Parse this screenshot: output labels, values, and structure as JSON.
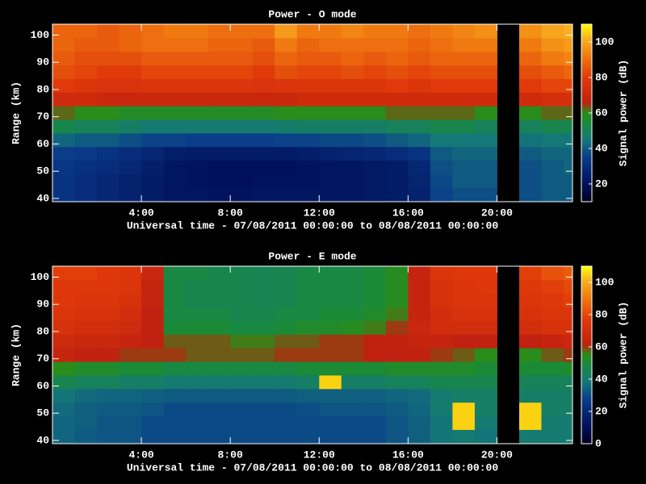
{
  "chart_data": [
    {
      "type": "heatmap",
      "title": "Power - O mode",
      "xlabel": "Universal time - 07/08/2011 00:00:00 to 08/08/2011 00:00:00",
      "ylabel": "Range (km)",
      "colorbar_label": "Signal power (dB)",
      "x_bins": [
        0,
        1,
        2,
        3,
        4,
        5,
        6,
        7,
        8,
        9,
        10,
        11,
        12,
        13,
        14,
        15,
        16,
        17,
        18,
        19,
        20,
        21,
        22,
        23,
        24
      ],
      "y_bins": [
        39,
        44,
        49,
        54,
        59,
        64,
        69,
        74,
        79,
        84,
        89,
        94,
        99,
        104
      ],
      "xlim": [
        0,
        23.4
      ],
      "ylim": [
        38.8,
        104
      ],
      "xticks": [
        {
          "value": 4,
          "label": "4:00"
        },
        {
          "value": 8,
          "label": "8:00"
        },
        {
          "value": 12,
          "label": "12:00"
        },
        {
          "value": 16,
          "label": "16:00"
        },
        {
          "value": 20,
          "label": "20:00"
        }
      ],
      "yticks": [
        40,
        50,
        60,
        70,
        80,
        90,
        100
      ],
      "clim": [
        10,
        110
      ],
      "cticks": [
        20,
        40,
        60,
        80,
        100
      ],
      "colormap": [
        [
          0,
          "#000020"
        ],
        [
          0.1,
          "#00105a"
        ],
        [
          0.25,
          "#0a3c8a"
        ],
        [
          0.35,
          "#147878"
        ],
        [
          0.45,
          "#1a8a3a"
        ],
        [
          0.5,
          "#2a8c1a"
        ],
        [
          0.56,
          "#c02010"
        ],
        [
          0.7,
          "#e03a0a"
        ],
        [
          0.82,
          "#f07a10"
        ],
        [
          0.92,
          "#f8b020"
        ],
        [
          1,
          "#ffff00"
        ]
      ],
      "values": [
        [
          32,
          30,
          28,
          26,
          24,
          22,
          22,
          21,
          21,
          22,
          22,
          22,
          22,
          22,
          23,
          24,
          26,
          36,
          38,
          38,
          null,
          38,
          40,
          40
        ],
        [
          32,
          30,
          28,
          26,
          24,
          22,
          21,
          20,
          20,
          21,
          21,
          21,
          22,
          22,
          23,
          24,
          27,
          37,
          40,
          40,
          null,
          38,
          40,
          40
        ],
        [
          33,
          31,
          30,
          28,
          25,
          22,
          21,
          20,
          20,
          20,
          20,
          21,
          22,
          22,
          23,
          24,
          28,
          38,
          40,
          40,
          null,
          38,
          40,
          42
        ],
        [
          35,
          34,
          32,
          30,
          28,
          25,
          24,
          24,
          24,
          24,
          24,
          25,
          26,
          27,
          28,
          30,
          32,
          40,
          42,
          42,
          null,
          40,
          42,
          42
        ],
        [
          42,
          40,
          40,
          38,
          36,
          36,
          35,
          35,
          35,
          35,
          36,
          36,
          37,
          37,
          38,
          40,
          42,
          45,
          45,
          45,
          null,
          44,
          45,
          45
        ],
        [
          52,
          50,
          50,
          48,
          46,
          46,
          46,
          46,
          46,
          46,
          47,
          48,
          48,
          48,
          48,
          50,
          50,
          52,
          52,
          50,
          null,
          50,
          52,
          52
        ],
        [
          62,
          60,
          60,
          58,
          58,
          58,
          58,
          58,
          58,
          58,
          60,
          60,
          60,
          60,
          60,
          62,
          62,
          62,
          62,
          60,
          null,
          60,
          62,
          62
        ],
        [
          72,
          72,
          70,
          70,
          70,
          70,
          70,
          70,
          70,
          70,
          70,
          72,
          72,
          72,
          72,
          72,
          72,
          72,
          72,
          72,
          null,
          72,
          74,
          74
        ],
        [
          80,
          78,
          76,
          76,
          78,
          78,
          78,
          78,
          78,
          76,
          78,
          78,
          78,
          78,
          78,
          80,
          78,
          80,
          80,
          80,
          null,
          80,
          82,
          82
        ],
        [
          84,
          82,
          80,
          80,
          82,
          82,
          82,
          82,
          82,
          80,
          84,
          82,
          82,
          84,
          82,
          84,
          82,
          84,
          84,
          84,
          null,
          84,
          86,
          88
        ],
        [
          86,
          84,
          84,
          84,
          86,
          86,
          86,
          86,
          86,
          84,
          88,
          86,
          86,
          88,
          86,
          88,
          86,
          88,
          88,
          88,
          null,
          88,
          92,
          94
        ],
        [
          88,
          86,
          86,
          88,
          90,
          90,
          90,
          88,
          88,
          86,
          92,
          88,
          90,
          90,
          90,
          90,
          88,
          90,
          92,
          92,
          null,
          92,
          96,
          98
        ],
        [
          88,
          88,
          86,
          88,
          90,
          92,
          92,
          90,
          90,
          90,
          98,
          92,
          92,
          94,
          92,
          92,
          90,
          92,
          94,
          96,
          null,
          96,
          100,
          102
        ]
      ]
    },
    {
      "type": "heatmap",
      "title": "Power - E mode",
      "xlabel": "Universal time - 07/08/2011 00:00:00 to 08/08/2011 00:00:00",
      "ylabel": "Range (km)",
      "colorbar_label": "Signal power (dB)",
      "x_bins": [
        0,
        1,
        2,
        3,
        4,
        5,
        6,
        7,
        8,
        9,
        10,
        11,
        12,
        13,
        14,
        15,
        16,
        17,
        18,
        19,
        20,
        21,
        22,
        23,
        24
      ],
      "y_bins": [
        39,
        44,
        49,
        54,
        59,
        64,
        69,
        74,
        79,
        84,
        89,
        94,
        99,
        104
      ],
      "xlim": [
        0,
        23.4
      ],
      "ylim": [
        38.8,
        104
      ],
      "xticks": [
        {
          "value": 4,
          "label": "4:00"
        },
        {
          "value": 8,
          "label": "8:00"
        },
        {
          "value": 12,
          "label": "12:00"
        },
        {
          "value": 16,
          "label": "16:00"
        },
        {
          "value": 20,
          "label": "20:00"
        }
      ],
      "yticks": [
        40,
        50,
        60,
        70,
        80,
        90,
        100
      ],
      "clim": [
        0,
        110
      ],
      "cticks": [
        0,
        20,
        40,
        60,
        80,
        100
      ],
      "colormap": [
        [
          0,
          "#000020"
        ],
        [
          0.1,
          "#00105a"
        ],
        [
          0.25,
          "#0a3c8a"
        ],
        [
          0.35,
          "#147878"
        ],
        [
          0.45,
          "#1a8a3a"
        ],
        [
          0.5,
          "#2a8c1a"
        ],
        [
          0.56,
          "#c02010"
        ],
        [
          0.7,
          "#e03a0a"
        ],
        [
          0.82,
          "#f07a10"
        ],
        [
          0.92,
          "#f8b020"
        ],
        [
          1,
          "#ffff00"
        ]
      ],
      "values": [
        [
          35,
          33,
          32,
          32,
          30,
          30,
          30,
          30,
          30,
          30,
          30,
          30,
          30,
          30,
          30,
          32,
          34,
          38,
          40,
          38,
          null,
          40,
          40,
          40
        ],
        [
          35,
          34,
          32,
          32,
          30,
          30,
          30,
          30,
          30,
          30,
          30,
          30,
          30,
          30,
          30,
          32,
          34,
          38,
          105,
          40,
          null,
          105,
          40,
          40
        ],
        [
          36,
          34,
          33,
          33,
          32,
          30,
          30,
          30,
          30,
          30,
          30,
          31,
          32,
          32,
          32,
          33,
          35,
          40,
          105,
          42,
          null,
          105,
          42,
          42
        ],
        [
          38,
          36,
          35,
          35,
          34,
          33,
          33,
          33,
          33,
          33,
          33,
          34,
          34,
          34,
          34,
          35,
          36,
          40,
          42,
          42,
          null,
          42,
          42,
          42
        ],
        [
          46,
          44,
          44,
          42,
          42,
          40,
          40,
          40,
          40,
          40,
          40,
          42,
          105,
          42,
          42,
          44,
          44,
          46,
          46,
          46,
          null,
          44,
          44,
          44
        ],
        [
          55,
          52,
          52,
          50,
          50,
          48,
          48,
          48,
          48,
          48,
          48,
          50,
          50,
          50,
          50,
          52,
          52,
          52,
          52,
          50,
          null,
          50,
          50,
          52
        ],
        [
          64,
          62,
          62,
          60,
          60,
          60,
          58,
          58,
          58,
          58,
          60,
          60,
          60,
          60,
          62,
          62,
          62,
          60,
          58,
          55,
          null,
          55,
          58,
          60
        ],
        [
          68,
          66,
          66,
          64,
          62,
          58,
          58,
          58,
          56,
          56,
          58,
          58,
          60,
          60,
          62,
          62,
          64,
          64,
          62,
          62,
          null,
          62,
          64,
          66
        ],
        [
          72,
          70,
          70,
          68,
          62,
          50,
          50,
          50,
          48,
          48,
          50,
          52,
          52,
          54,
          56,
          60,
          66,
          70,
          70,
          70,
          null,
          70,
          72,
          72
        ],
        [
          74,
          72,
          72,
          70,
          62,
          48,
          48,
          48,
          46,
          46,
          48,
          48,
          50,
          50,
          52,
          56,
          64,
          70,
          72,
          72,
          null,
          72,
          74,
          74
        ],
        [
          76,
          74,
          74,
          72,
          64,
          48,
          46,
          46,
          46,
          45,
          46,
          48,
          48,
          48,
          50,
          54,
          64,
          72,
          74,
          74,
          null,
          74,
          76,
          78
        ],
        [
          76,
          76,
          76,
          74,
          64,
          48,
          46,
          46,
          46,
          45,
          46,
          48,
          48,
          48,
          50,
          54,
          64,
          72,
          74,
          76,
          null,
          76,
          78,
          80
        ],
        [
          78,
          78,
          76,
          74,
          66,
          48,
          48,
          46,
          46,
          45,
          46,
          48,
          48,
          48,
          50,
          54,
          64,
          74,
          76,
          76,
          null,
          78,
          82,
          84
        ]
      ]
    }
  ]
}
